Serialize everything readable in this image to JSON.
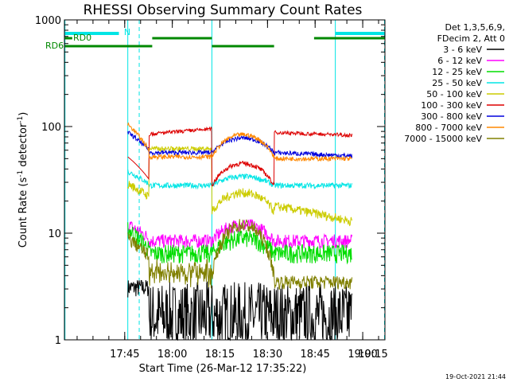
{
  "chart_data": {
    "type": "line",
    "title": "RHESSI Observing Summary Count Rates",
    "xlabel": "Start Time (26-Mar-12 17:35:22)",
    "ylabel_main": "Count Rate (s",
    "ylabel_exp1": "-1",
    "ylabel_mid": " detector",
    "ylabel_exp2": "-1",
    "ylabel_end": ")",
    "yscale": "log",
    "ylim": [
      1,
      1000
    ],
    "xlim_minutes": [
      -9.37,
      91.63
    ],
    "y_ticks": [
      {
        "value": 1,
        "label": "1"
      },
      {
        "value": 10,
        "label": "10"
      },
      {
        "value": 100,
        "label": "100"
      },
      {
        "value": 1000,
        "label": "1000"
      }
    ],
    "x_ticks": [
      {
        "label": "17:45",
        "minute": 9.63
      },
      {
        "label": "18:00",
        "minute": 24.63
      },
      {
        "label": "18:15",
        "minute": 39.63
      },
      {
        "label": "18:30",
        "minute": 54.63
      },
      {
        "label": "18:45",
        "minute": 69.63
      },
      {
        "label": "19:00",
        "minute": 84.63
      },
      {
        "label": "19:15",
        "minute": 99.63
      }
    ],
    "legend_header": [
      "Det 1,3,5,6,9,",
      "FDecim 2, Att 0"
    ],
    "series": [
      {
        "name": "3 - 6 keV",
        "color": "#000000"
      },
      {
        "name": "6 - 12 keV",
        "color": "#ff00ff"
      },
      {
        "name": "12 - 25 keV",
        "color": "#00dd00"
      },
      {
        "name": "25 - 50 keV",
        "color": "#00e5e5"
      },
      {
        "name": "50 - 100 keV",
        "color": "#cccc00"
      },
      {
        "name": "100 - 300 keV",
        "color": "#dd0000"
      },
      {
        "name": "300 - 800 keV",
        "color": "#0000dd"
      },
      {
        "name": "800 - 7000 keV",
        "color": "#ff8800"
      },
      {
        "name": "7000 - 15000 keV",
        "color": "#808000"
      }
    ],
    "flag_labels": {
      "n": "N",
      "rd0": "RD0",
      "rd6": "RD6"
    },
    "colors": {
      "night_flag": "#00e5e5",
      "rd_flag": "#008800",
      "axes": "#000000"
    }
  },
  "timestamp": "19-Oct-2021 21:44"
}
